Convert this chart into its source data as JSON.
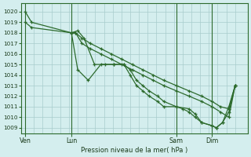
{
  "background_color": "#d4eeee",
  "grid_color": "#a8cccc",
  "line_color": "#2d6b2d",
  "ylabel_text": "Pression niveau de la mer( hPa )",
  "ylim": [
    1008.5,
    1020.8
  ],
  "yticks": [
    1009,
    1010,
    1011,
    1012,
    1013,
    1014,
    1015,
    1016,
    1017,
    1018,
    1019,
    1020
  ],
  "xtick_labels": [
    "Ven",
    "Lun",
    "Sam",
    "Dim"
  ],
  "vline_positions": [
    0.0,
    0.22,
    0.72,
    0.89
  ],
  "series": [
    {
      "x": [
        0.0,
        0.03,
        0.22,
        0.24,
        0.27,
        0.31,
        0.36,
        0.41,
        0.46,
        0.51,
        0.56,
        0.61,
        0.66,
        0.72,
        0.78,
        0.84,
        0.89,
        0.93,
        0.97,
        1.0
      ],
      "y": [
        1020,
        1019,
        1018,
        1018,
        1017.5,
        1017,
        1016.5,
        1016,
        1015.5,
        1015,
        1014.5,
        1014,
        1013.5,
        1013,
        1012.5,
        1012,
        1011.5,
        1011,
        1010.8,
        1013
      ]
    },
    {
      "x": [
        0.0,
        0.03,
        0.22,
        0.24,
        0.27,
        0.31,
        0.36,
        0.41,
        0.46,
        0.51,
        0.56,
        0.61,
        0.66,
        0.72,
        0.78,
        0.84,
        0.89,
        0.93,
        0.97,
        1.0
      ],
      "y": [
        1019,
        1018.5,
        1018,
        1018,
        1017,
        1016.5,
        1016,
        1015.5,
        1015,
        1014.5,
        1014,
        1013.5,
        1013,
        1012.5,
        1012,
        1011.5,
        1011,
        1010.5,
        1010,
        1013
      ]
    },
    {
      "x": [
        0.22,
        0.25,
        0.28,
        0.33,
        0.38,
        0.42,
        0.47,
        0.5,
        0.53,
        0.56,
        0.59,
        0.63,
        0.66,
        0.72,
        0.75,
        0.78,
        0.81,
        0.84,
        0.89,
        0.91,
        0.94,
        0.97,
        1.0
      ],
      "y": [
        1018,
        1018.2,
        1017.5,
        1015,
        1015,
        1015,
        1015,
        1014.5,
        1013.5,
        1013,
        1012.5,
        1012,
        1011.5,
        1011,
        1010.8,
        1010.5,
        1010,
        1009.5,
        1009.2,
        1009,
        1009.5,
        1011,
        1013
      ]
    },
    {
      "x": [
        0.22,
        0.25,
        0.3,
        0.36,
        0.42,
        0.47,
        0.5,
        0.53,
        0.56,
        0.59,
        0.63,
        0.66,
        0.72,
        0.78,
        0.81,
        0.84,
        0.89,
        0.91,
        0.94,
        0.97,
        1.0
      ],
      "y": [
        1018,
        1014.5,
        1013.5,
        1015,
        1015,
        1015,
        1014,
        1013,
        1012.5,
        1012,
        1011.5,
        1011,
        1011,
        1010.8,
        1010.3,
        1009.5,
        1009.2,
        1009,
        1009.5,
        1010.5,
        1013
      ]
    }
  ]
}
